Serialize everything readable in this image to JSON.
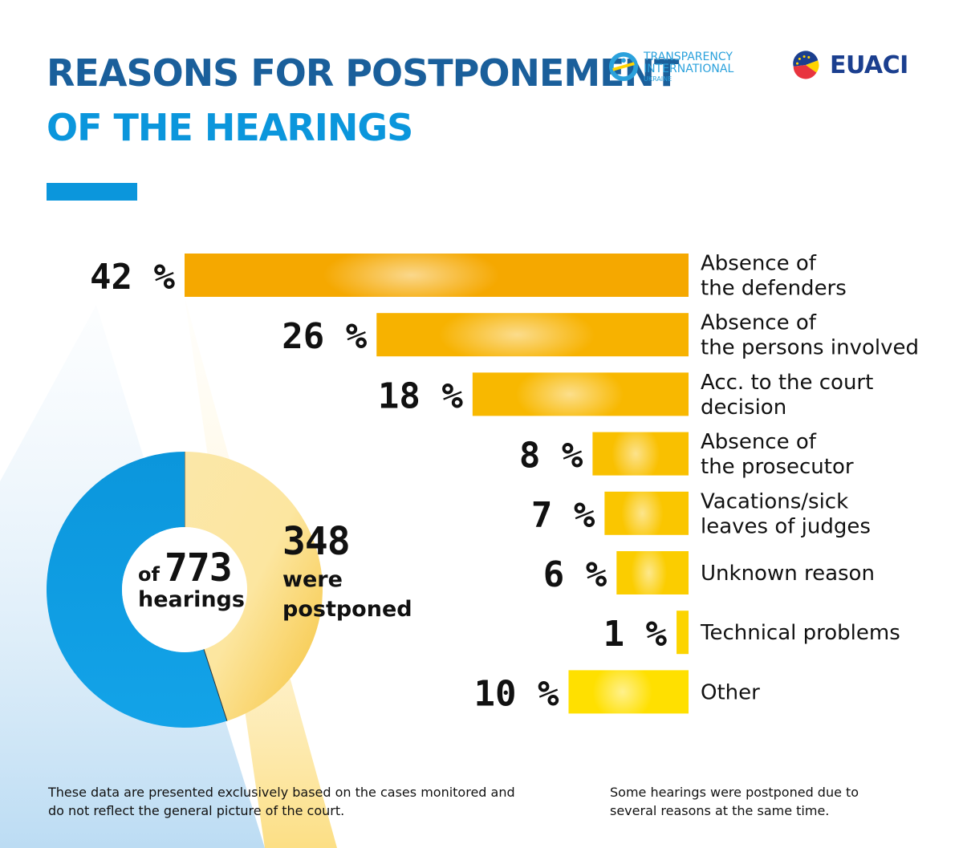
{
  "header": {
    "title_line1": "REASONS FOR POSTPONEMENT",
    "title_line2": "OF THE HEARINGS"
  },
  "logos": {
    "ti": {
      "line1": "TRANSPARENCY",
      "line2": "INTERNATIONAL",
      "line3": "UKRAINE",
      "icon": "ti-ring-logo"
    },
    "euaci": {
      "text": "EUACI",
      "icon": "euaci-emblem-logo"
    }
  },
  "colors": {
    "blue_dark": "#1a5f9b",
    "blue_light": "#0b96dc",
    "orange": "#f5a800",
    "yellow": "#ffe000"
  },
  "summary": {
    "of_label": "of",
    "total_hearings": "773",
    "hearings_label": "hearings",
    "postponed_count": "348",
    "postponed_label_1": "were",
    "postponed_label_2": "postponed"
  },
  "notes": {
    "left": "These data are presented exclusively based on the cases monitored and do not reflect the general picture of the court.",
    "right": "Some hearings were postponed due to several reasons at the same time."
  },
  "chart_data": [
    {
      "type": "bar",
      "orientation": "horizontal",
      "categories": [
        [
          "Absence of",
          "the defenders"
        ],
        [
          "Absence of",
          "the persons involved"
        ],
        [
          "Acc. to the court",
          "decision"
        ],
        [
          "Absence of",
          "the prosecutor"
        ],
        [
          "Vacations/sick",
          "leaves of judges"
        ],
        [
          "Unknown reason"
        ],
        [
          "Technical problems"
        ],
        [
          "Other"
        ]
      ],
      "values": [
        42,
        26,
        18,
        8,
        7,
        6,
        1,
        10
      ],
      "value_labels": [
        "42 %",
        "26 %",
        "18 %",
        "8 %",
        "7 %",
        "6 %",
        "1 %",
        "10 %"
      ],
      "unit": "%",
      "bar_colors": [
        "#f5a800",
        "#f7b200",
        "#f8b800",
        "#f9c000",
        "#fac600",
        "#fbcd00",
        "#fcd400",
        "#ffe000"
      ]
    },
    {
      "type": "pie",
      "style": "donut",
      "slices": [
        {
          "value": 348,
          "color": "#f6c33a"
        },
        {
          "value": 425,
          "color": "#0b96dc"
        }
      ],
      "total": 773
    }
  ]
}
